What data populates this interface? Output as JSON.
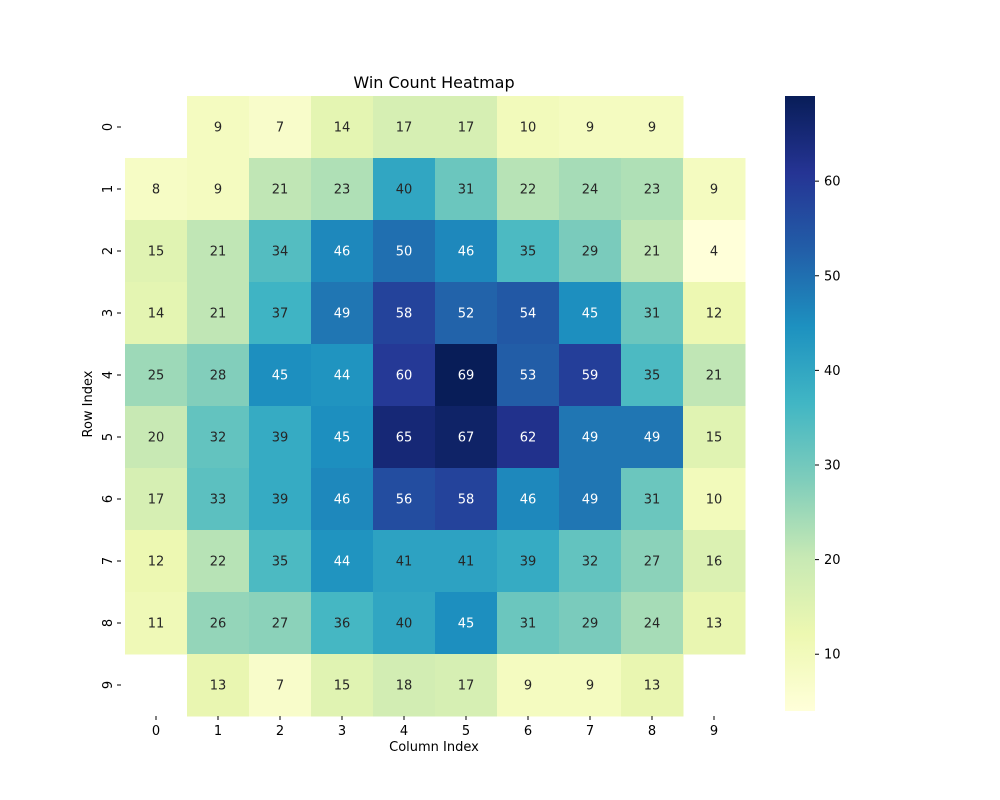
{
  "chart_data": {
    "type": "heatmap",
    "title": "Win Count Heatmap",
    "xlabel": "Column Index",
    "ylabel": "Row Index",
    "x_categories": [
      "0",
      "1",
      "2",
      "3",
      "4",
      "5",
      "6",
      "7",
      "8",
      "9"
    ],
    "y_categories": [
      "0",
      "1",
      "2",
      "3",
      "4",
      "5",
      "6",
      "7",
      "8",
      "9"
    ],
    "values": [
      [
        null,
        9,
        7,
        14,
        17,
        17,
        10,
        9,
        9,
        null
      ],
      [
        8,
        9,
        21,
        23,
        40,
        31,
        22,
        24,
        23,
        9
      ],
      [
        15,
        21,
        34,
        46,
        50,
        46,
        35,
        29,
        21,
        4
      ],
      [
        14,
        21,
        37,
        49,
        58,
        52,
        54,
        45,
        31,
        12
      ],
      [
        25,
        28,
        45,
        44,
        60,
        69,
        53,
        59,
        35,
        21
      ],
      [
        20,
        32,
        39,
        45,
        65,
        67,
        62,
        49,
        49,
        15
      ],
      [
        17,
        33,
        39,
        46,
        56,
        58,
        46,
        49,
        31,
        10
      ],
      [
        12,
        22,
        35,
        44,
        41,
        41,
        39,
        32,
        27,
        16
      ],
      [
        11,
        26,
        27,
        36,
        40,
        45,
        31,
        29,
        24,
        13
      ],
      [
        null,
        13,
        7,
        15,
        18,
        17,
        9,
        9,
        13,
        null
      ]
    ],
    "colormap": "YlGnBu",
    "colorbar": {
      "range": [
        4,
        69
      ],
      "ticks": [
        10,
        20,
        30,
        40,
        50,
        60
      ]
    },
    "annotate": true,
    "grid": false
  }
}
